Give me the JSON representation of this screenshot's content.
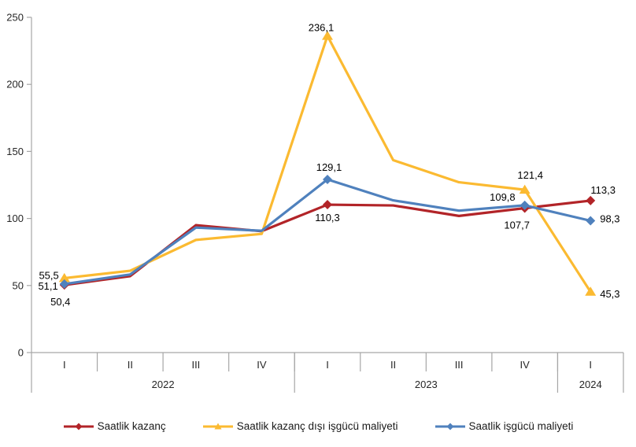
{
  "chart_data": {
    "type": "line",
    "title": "",
    "xlabel": "",
    "ylabel": "",
    "ylim": [
      0,
      250
    ],
    "yticks": [
      0,
      50,
      100,
      150,
      200,
      250
    ],
    "grid": false,
    "legend_position": "bottom",
    "categories": [
      "I",
      "II",
      "III",
      "IV",
      "I",
      "II",
      "III",
      "IV",
      "I"
    ],
    "year_groups": [
      {
        "label": "2022",
        "span": 4
      },
      {
        "label": "2023",
        "span": 4
      },
      {
        "label": "2024",
        "span": 1
      }
    ],
    "series": [
      {
        "name": "Saatlik kazanç",
        "color": "#B22428",
        "marker": "diamond",
        "values": [
          50.4,
          57.0,
          95.0,
          90.5,
          110.3,
          109.7,
          101.9,
          107.7,
          113.3
        ],
        "labels": [
          "50,4",
          null,
          null,
          null,
          "110,3",
          null,
          null,
          "107,7",
          "113,3"
        ]
      },
      {
        "name": "Saatlik kazanç dışı işgücü maliyeti",
        "color": "#FBBA31",
        "marker": "triangle",
        "values": [
          55.5,
          61.0,
          84.0,
          88.5,
          236.1,
          143.5,
          127.0,
          121.4,
          45.3
        ],
        "labels": [
          "55,5",
          null,
          null,
          null,
          "236,1",
          null,
          null,
          "121,4",
          "45,3"
        ]
      },
      {
        "name": "Saatlik işgücü maliyeti",
        "color": "#4F81BD",
        "marker": "diamond",
        "values": [
          51.1,
          58.2,
          93.2,
          90.8,
          129.1,
          113.5,
          105.8,
          109.8,
          98.3
        ],
        "labels": [
          "51,1",
          null,
          null,
          null,
          "129,1",
          null,
          null,
          "109,8",
          "98,3"
        ]
      }
    ],
    "axis_color": "#A6A6A6"
  }
}
